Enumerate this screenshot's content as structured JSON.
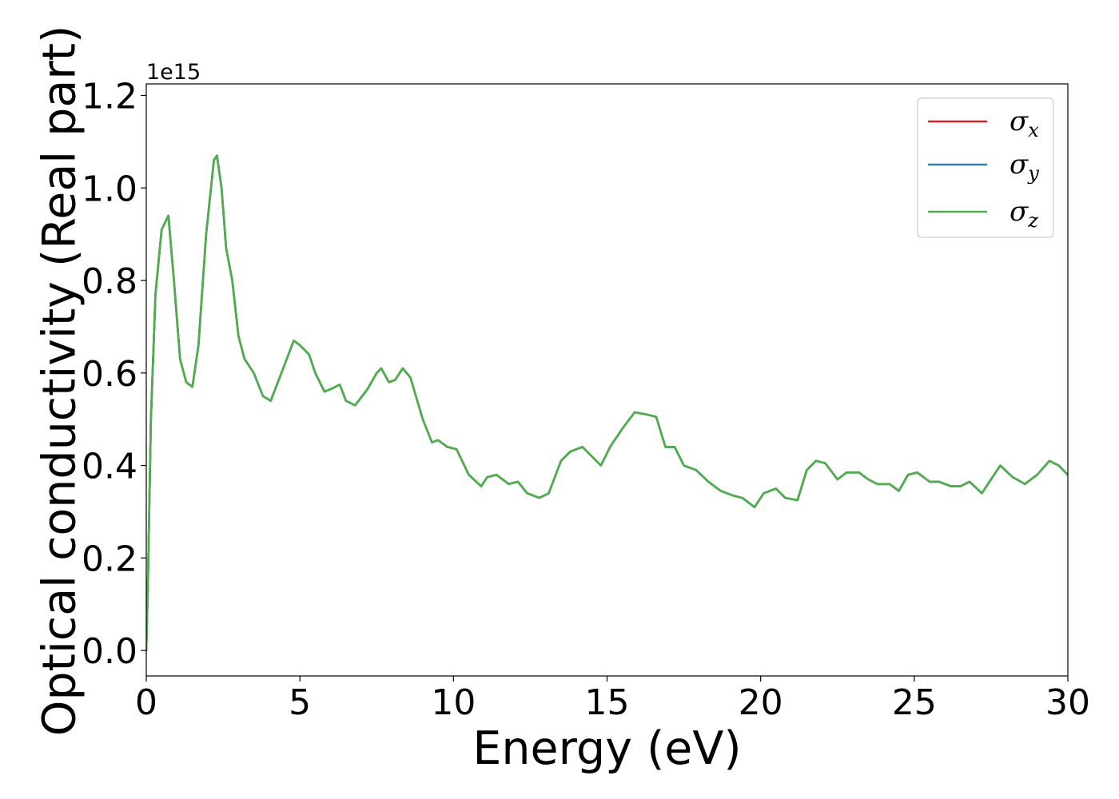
{
  "chart_data": {
    "type": "line",
    "xlabel": "Energy (eV)",
    "ylabel": "Optical conductivity (Real part)",
    "y_offset_text": "1e15",
    "xlim": [
      0,
      30
    ],
    "ylim": [
      -0.055,
      1.225
    ],
    "xticks": [
      0,
      5,
      10,
      15,
      20,
      25,
      30
    ],
    "xtick_labels": [
      "0",
      "5",
      "10",
      "15",
      "20",
      "25",
      "30"
    ],
    "yticks": [
      0.0,
      0.2,
      0.4,
      0.6,
      0.8,
      1.0,
      1.2
    ],
    "ytick_labels": [
      "0.0",
      "0.2",
      "0.4",
      "0.6",
      "0.8",
      "1.0",
      "1.2"
    ],
    "grid": false,
    "legend_position": "top-right",
    "series": [
      {
        "name": "σx",
        "base": "σ",
        "sub": "x",
        "color": "#d62728",
        "x": [
          0,
          0.05,
          0.15,
          0.3,
          0.5,
          0.72,
          0.9,
          1.1,
          1.3,
          1.5,
          1.7,
          1.95,
          2.2,
          2.3,
          2.45,
          2.6,
          2.8,
          3.0,
          3.2,
          3.5,
          3.8,
          4.05,
          4.4,
          4.8,
          5.0,
          5.3,
          5.5,
          5.8,
          6.0,
          6.3,
          6.5,
          6.8,
          7.2,
          7.5,
          7.65,
          7.9,
          8.1,
          8.35,
          8.6,
          9.0,
          9.3,
          9.5,
          9.8,
          10.1,
          10.5,
          10.9,
          11.1,
          11.4,
          11.8,
          12.1,
          12.4,
          12.8,
          13.1,
          13.5,
          13.8,
          14.2,
          14.5,
          14.8,
          15.1,
          15.5,
          15.9,
          16.3,
          16.6,
          16.9,
          17.2,
          17.5,
          17.9,
          18.3,
          18.7,
          19.1,
          19.4,
          19.8,
          20.1,
          20.5,
          20.8,
          21.2,
          21.5,
          21.8,
          22.1,
          22.5,
          22.8,
          23.2,
          23.5,
          23.8,
          24.2,
          24.5,
          24.8,
          25.1,
          25.5,
          25.8,
          26.2,
          26.5,
          26.8,
          27.2,
          27.5,
          27.8,
          28.2,
          28.6,
          29.0,
          29.4,
          29.7,
          30.0
        ],
        "y": [
          0.0,
          0.13,
          0.5,
          0.77,
          0.91,
          0.94,
          0.8,
          0.63,
          0.58,
          0.57,
          0.66,
          0.9,
          1.06,
          1.07,
          1.0,
          0.87,
          0.8,
          0.68,
          0.63,
          0.6,
          0.55,
          0.54,
          0.6,
          0.67,
          0.66,
          0.64,
          0.6,
          0.56,
          0.565,
          0.575,
          0.54,
          0.53,
          0.565,
          0.6,
          0.61,
          0.58,
          0.585,
          0.61,
          0.59,
          0.5,
          0.45,
          0.455,
          0.44,
          0.435,
          0.38,
          0.355,
          0.375,
          0.38,
          0.36,
          0.365,
          0.34,
          0.33,
          0.34,
          0.41,
          0.43,
          0.44,
          0.42,
          0.4,
          0.44,
          0.48,
          0.515,
          0.51,
          0.505,
          0.44,
          0.44,
          0.4,
          0.39,
          0.365,
          0.345,
          0.335,
          0.33,
          0.31,
          0.34,
          0.35,
          0.33,
          0.325,
          0.39,
          0.41,
          0.405,
          0.37,
          0.385,
          0.385,
          0.37,
          0.36,
          0.36,
          0.345,
          0.38,
          0.385,
          0.365,
          0.365,
          0.355,
          0.355,
          0.365,
          0.34,
          0.37,
          0.4,
          0.375,
          0.36,
          0.38,
          0.41,
          0.4,
          0.38
        ]
      },
      {
        "name": "σy",
        "base": "σ",
        "sub": "y",
        "color": "#377eb8",
        "x": [
          0,
          0.05,
          0.15,
          0.3,
          0.5,
          0.72,
          0.9,
          1.1,
          1.3,
          1.5,
          1.7,
          1.95,
          2.2,
          2.3,
          2.45,
          2.6,
          2.8,
          3.0,
          3.2,
          3.5,
          3.8,
          4.05,
          4.4,
          4.8,
          5.0,
          5.3,
          5.5,
          5.8,
          6.0,
          6.3,
          6.5,
          6.8,
          7.2,
          7.5,
          7.65,
          7.9,
          8.1,
          8.35,
          8.6,
          9.0,
          9.3,
          9.5,
          9.8,
          10.1,
          10.5,
          10.9,
          11.1,
          11.4,
          11.8,
          12.1,
          12.4,
          12.8,
          13.1,
          13.5,
          13.8,
          14.2,
          14.5,
          14.8,
          15.1,
          15.5,
          15.9,
          16.3,
          16.6,
          16.9,
          17.2,
          17.5,
          17.9,
          18.3,
          18.7,
          19.1,
          19.4,
          19.8,
          20.1,
          20.5,
          20.8,
          21.2,
          21.5,
          21.8,
          22.1,
          22.5,
          22.8,
          23.2,
          23.5,
          23.8,
          24.2,
          24.5,
          24.8,
          25.1,
          25.5,
          25.8,
          26.2,
          26.5,
          26.8,
          27.2,
          27.5,
          27.8,
          28.2,
          28.6,
          29.0,
          29.4,
          29.7,
          30.0
        ],
        "y": [
          0.0,
          0.13,
          0.5,
          0.77,
          0.91,
          0.94,
          0.8,
          0.63,
          0.58,
          0.57,
          0.66,
          0.9,
          1.06,
          1.07,
          1.0,
          0.87,
          0.8,
          0.68,
          0.63,
          0.6,
          0.55,
          0.54,
          0.6,
          0.67,
          0.66,
          0.64,
          0.6,
          0.56,
          0.565,
          0.575,
          0.54,
          0.53,
          0.565,
          0.6,
          0.61,
          0.58,
          0.585,
          0.61,
          0.59,
          0.5,
          0.45,
          0.455,
          0.44,
          0.435,
          0.38,
          0.355,
          0.375,
          0.38,
          0.36,
          0.365,
          0.34,
          0.33,
          0.34,
          0.41,
          0.43,
          0.44,
          0.42,
          0.4,
          0.44,
          0.48,
          0.515,
          0.51,
          0.505,
          0.44,
          0.44,
          0.4,
          0.39,
          0.365,
          0.345,
          0.335,
          0.33,
          0.31,
          0.34,
          0.35,
          0.33,
          0.325,
          0.39,
          0.41,
          0.405,
          0.37,
          0.385,
          0.385,
          0.37,
          0.36,
          0.36,
          0.345,
          0.38,
          0.385,
          0.365,
          0.365,
          0.355,
          0.355,
          0.365,
          0.34,
          0.37,
          0.4,
          0.375,
          0.36,
          0.38,
          0.41,
          0.4,
          0.38
        ]
      },
      {
        "name": "σz",
        "base": "σ",
        "sub": "z",
        "color": "#4daf4a",
        "x": [
          0,
          0.05,
          0.15,
          0.3,
          0.5,
          0.72,
          0.9,
          1.1,
          1.3,
          1.5,
          1.7,
          1.95,
          2.2,
          2.3,
          2.45,
          2.6,
          2.8,
          3.0,
          3.2,
          3.5,
          3.8,
          4.05,
          4.4,
          4.8,
          5.0,
          5.3,
          5.5,
          5.8,
          6.0,
          6.3,
          6.5,
          6.8,
          7.2,
          7.5,
          7.65,
          7.9,
          8.1,
          8.35,
          8.6,
          9.0,
          9.3,
          9.5,
          9.8,
          10.1,
          10.5,
          10.9,
          11.1,
          11.4,
          11.8,
          12.1,
          12.4,
          12.8,
          13.1,
          13.5,
          13.8,
          14.2,
          14.5,
          14.8,
          15.1,
          15.5,
          15.9,
          16.3,
          16.6,
          16.9,
          17.2,
          17.5,
          17.9,
          18.3,
          18.7,
          19.1,
          19.4,
          19.8,
          20.1,
          20.5,
          20.8,
          21.2,
          21.5,
          21.8,
          22.1,
          22.5,
          22.8,
          23.2,
          23.5,
          23.8,
          24.2,
          24.5,
          24.8,
          25.1,
          25.5,
          25.8,
          26.2,
          26.5,
          26.8,
          27.2,
          27.5,
          27.8,
          28.2,
          28.6,
          29.0,
          29.4,
          29.7,
          30.0
        ],
        "y": [
          0.0,
          0.13,
          0.5,
          0.77,
          0.91,
          0.94,
          0.8,
          0.63,
          0.58,
          0.57,
          0.66,
          0.9,
          1.06,
          1.07,
          1.0,
          0.87,
          0.8,
          0.68,
          0.63,
          0.6,
          0.55,
          0.54,
          0.6,
          0.67,
          0.66,
          0.64,
          0.6,
          0.56,
          0.565,
          0.575,
          0.54,
          0.53,
          0.565,
          0.6,
          0.61,
          0.58,
          0.585,
          0.61,
          0.59,
          0.5,
          0.45,
          0.455,
          0.44,
          0.435,
          0.38,
          0.355,
          0.375,
          0.38,
          0.36,
          0.365,
          0.34,
          0.33,
          0.34,
          0.41,
          0.43,
          0.44,
          0.42,
          0.4,
          0.44,
          0.48,
          0.515,
          0.51,
          0.505,
          0.44,
          0.44,
          0.4,
          0.39,
          0.365,
          0.345,
          0.335,
          0.33,
          0.31,
          0.34,
          0.35,
          0.33,
          0.325,
          0.39,
          0.41,
          0.405,
          0.37,
          0.385,
          0.385,
          0.37,
          0.36,
          0.36,
          0.345,
          0.38,
          0.385,
          0.365,
          0.365,
          0.355,
          0.355,
          0.365,
          0.34,
          0.37,
          0.4,
          0.375,
          0.36,
          0.38,
          0.41,
          0.4,
          0.38
        ]
      }
    ]
  }
}
